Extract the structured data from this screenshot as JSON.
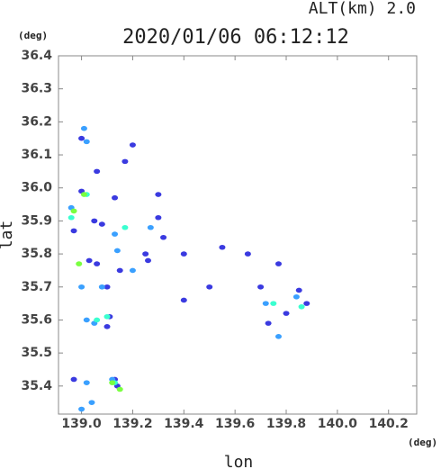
{
  "chart_data": {
    "type": "scatter",
    "title": "2020/01/06 06:12:12",
    "subtitle": "ALT(km) 2.0",
    "y_unit": "(deg)",
    "x_unit": "(deg)",
    "xlabel": "lon",
    "ylabel": "lat",
    "xlim": [
      138.91,
      140.31
    ],
    "ylim": [
      35.315,
      36.4
    ],
    "xticks": [
      {
        "value": 139,
        "label": "139.0"
      },
      139.2,
      139.4,
      139.6,
      139.8,
      {
        "value": 140,
        "label": "140.0"
      },
      140.2
    ],
    "yticks": [
      35.4,
      35.5,
      35.6,
      35.7,
      35.8,
      35.9,
      {
        "value": 36,
        "label": "36.0"
      },
      36.1,
      36.2,
      36.3,
      36.4
    ],
    "series": [
      {
        "color": "#3a3ae0",
        "x": [
          139.0,
          139.06,
          139.0,
          139.05,
          139.08,
          139.13,
          139.17,
          139.2,
          139.3,
          139.3,
          139.25,
          139.32,
          139.4,
          139.5,
          139.55,
          139.65,
          139.7,
          139.77,
          139.8,
          139.85,
          138.97,
          139.03,
          139.1,
          139.11,
          139.1,
          138.97,
          139.13,
          139.14,
          139.26,
          139.06,
          139.15,
          139.4,
          139.73,
          139.88
        ],
        "y": [
          36.15,
          36.05,
          35.99,
          35.9,
          35.89,
          35.97,
          36.08,
          36.13,
          35.98,
          35.91,
          35.8,
          35.85,
          35.8,
          35.7,
          35.82,
          35.8,
          35.7,
          35.77,
          35.62,
          35.69,
          35.87,
          35.78,
          35.7,
          35.61,
          35.58,
          35.42,
          35.42,
          35.4,
          35.78,
          35.77,
          35.75,
          35.66,
          35.59,
          35.65
        ]
      },
      {
        "color": "#3aa0ff",
        "x": [
          139.01,
          139.02,
          139.0,
          139.02,
          139.05,
          139.08,
          139.13,
          139.14,
          139.2,
          139.27,
          139.72,
          139.77,
          139.84,
          139.02,
          139.04,
          139.0,
          138.96,
          139.12
        ],
        "y": [
          36.18,
          36.14,
          35.7,
          35.6,
          35.59,
          35.7,
          35.86,
          35.81,
          35.75,
          35.88,
          35.65,
          35.55,
          35.67,
          35.41,
          35.35,
          35.33,
          35.94,
          35.42
        ]
      },
      {
        "color": "#3affd0",
        "x": [
          139.06,
          139.1,
          139.17,
          139.02,
          138.96,
          139.13,
          139.86,
          139.75
        ],
        "y": [
          35.6,
          35.61,
          35.88,
          35.98,
          35.91,
          35.41,
          35.64,
          35.65
        ]
      },
      {
        "color": "#7aff40",
        "x": [
          139.01,
          138.97,
          138.99,
          139.15,
          139.12
        ],
        "y": [
          35.98,
          35.93,
          35.77,
          35.39,
          35.41
        ]
      }
    ]
  }
}
